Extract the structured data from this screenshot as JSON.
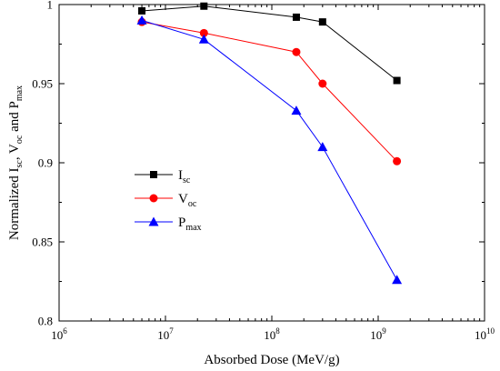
{
  "chart_data": {
    "type": "line",
    "xscale": "log",
    "xlim": [
      1000000,
      10000000000
    ],
    "ylim": [
      0.8,
      1.0
    ],
    "xlabel": "Absorbed Dose (MeV/g)",
    "ylabel": {
      "parts": [
        {
          "text": "Normalized I",
          "sub": false
        },
        {
          "text": "sc",
          "sub": true
        },
        {
          "text": ", V",
          "sub": false
        },
        {
          "text": "oc",
          "sub": true
        },
        {
          "text": " and P",
          "sub": false
        },
        {
          "text": "max",
          "sub": true
        }
      ]
    },
    "x_ticks": [
      {
        "value": 1000000,
        "base": "10",
        "exp": "6"
      },
      {
        "value": 10000000,
        "base": "10",
        "exp": "7"
      },
      {
        "value": 100000000,
        "base": "10",
        "exp": "8"
      },
      {
        "value": 1000000000,
        "base": "10",
        "exp": "9"
      },
      {
        "value": 10000000000,
        "base": "10",
        "exp": "10"
      }
    ],
    "y_ticks": [
      {
        "value": 0.8,
        "label": "0.8"
      },
      {
        "value": 0.85,
        "label": "0.85"
      },
      {
        "value": 0.9,
        "label": "0.9"
      },
      {
        "value": 0.95,
        "label": "0.95"
      },
      {
        "value": 1.0,
        "label": "1"
      }
    ],
    "legend_position": "middle-left",
    "grid": false,
    "series": [
      {
        "key": "isc",
        "label_main": "I",
        "label_sub": "sc",
        "color": "#000000",
        "marker": "square",
        "x": [
          6000000,
          23000000,
          170000000,
          300000000,
          1500000000
        ],
        "y": [
          0.996,
          0.999,
          0.992,
          0.989,
          0.952
        ]
      },
      {
        "key": "voc",
        "label_main": "V",
        "label_sub": "oc",
        "color": "#ff0000",
        "marker": "circle",
        "x": [
          6000000,
          23000000,
          170000000,
          300000000,
          1500000000
        ],
        "y": [
          0.989,
          0.982,
          0.97,
          0.95,
          0.901
        ]
      },
      {
        "key": "pmax",
        "label_main": "P",
        "label_sub": "max",
        "color": "#0000ff",
        "marker": "triangle",
        "x": [
          6000000,
          23000000,
          170000000,
          300000000,
          1500000000
        ],
        "y": [
          0.99,
          0.978,
          0.933,
          0.91,
          0.826
        ]
      }
    ]
  }
}
